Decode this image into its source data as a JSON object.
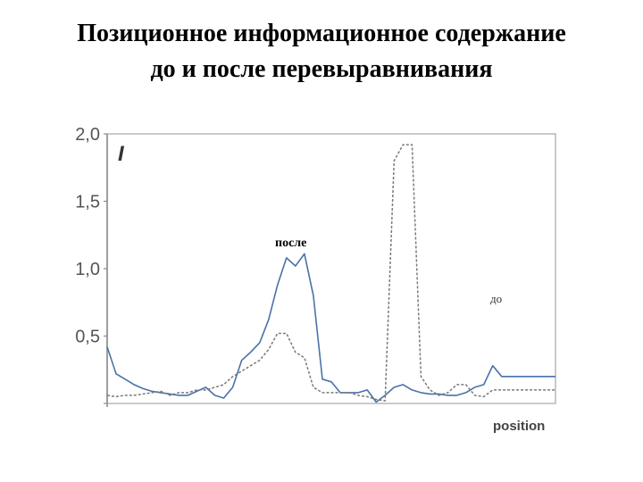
{
  "slide": {
    "title_line1": "Позиционное информационное содержание",
    "title_line2": "до и после перевыравнивания"
  },
  "chart_data": {
    "type": "line",
    "ylabel": "I",
    "xlabel": "position",
    "ylim": [
      0,
      2.0
    ],
    "yticks": [
      0.5,
      1.0,
      1.5,
      2.0
    ],
    "ytick_labels": [
      "0,5",
      "1,0",
      "1,5",
      "2,0"
    ],
    "grid": false,
    "annotations": [
      "после",
      "до"
    ],
    "series": [
      {
        "name": "после",
        "style": "solid",
        "color": "#4a72a8",
        "x": [
          0,
          1,
          2,
          3,
          4,
          5,
          6,
          7,
          8,
          9,
          10,
          11,
          12,
          13,
          14,
          15,
          16,
          17,
          18,
          19,
          20,
          21,
          22,
          23,
          24,
          25,
          26,
          27,
          28,
          29,
          30,
          31,
          32,
          33,
          34,
          35,
          36,
          37,
          38,
          39,
          40,
          41,
          42,
          43,
          44,
          45,
          46,
          47,
          48,
          49,
          50
        ],
        "y": [
          0.42,
          0.22,
          0.18,
          0.14,
          0.11,
          0.09,
          0.08,
          0.07,
          0.06,
          0.06,
          0.09,
          0.12,
          0.06,
          0.04,
          0.12,
          0.32,
          0.38,
          0.45,
          0.62,
          0.88,
          1.08,
          1.02,
          1.11,
          0.8,
          0.18,
          0.16,
          0.08,
          0.08,
          0.08,
          0.1,
          0.01,
          0.06,
          0.12,
          0.14,
          0.1,
          0.08,
          0.07,
          0.07,
          0.06,
          0.06,
          0.08,
          0.12,
          0.14,
          0.28,
          0.2,
          0.2,
          0.2,
          0.2,
          0.2,
          0.2,
          0.2
        ]
      },
      {
        "name": "до",
        "style": "dashed",
        "color": "#7a7a7a",
        "x": [
          0,
          1,
          2,
          3,
          4,
          5,
          6,
          7,
          8,
          9,
          10,
          11,
          12,
          13,
          14,
          15,
          16,
          17,
          18,
          19,
          20,
          21,
          22,
          23,
          24,
          25,
          26,
          27,
          28,
          29,
          30,
          31,
          32,
          33,
          34,
          35,
          36,
          37,
          38,
          39,
          40,
          41,
          42,
          43,
          44,
          45,
          46,
          47,
          48,
          49,
          50
        ],
        "y": [
          0.06,
          0.05,
          0.06,
          0.06,
          0.07,
          0.08,
          0.09,
          0.06,
          0.08,
          0.08,
          0.1,
          0.1,
          0.12,
          0.14,
          0.2,
          0.24,
          0.28,
          0.32,
          0.4,
          0.52,
          0.52,
          0.38,
          0.34,
          0.12,
          0.08,
          0.08,
          0.08,
          0.08,
          0.06,
          0.05,
          0.03,
          0.02,
          1.8,
          1.92,
          1.92,
          0.2,
          0.1,
          0.06,
          0.08,
          0.14,
          0.14,
          0.06,
          0.05,
          0.1,
          0.1,
          0.1,
          0.1,
          0.1,
          0.1,
          0.1,
          0.1
        ]
      }
    ]
  }
}
